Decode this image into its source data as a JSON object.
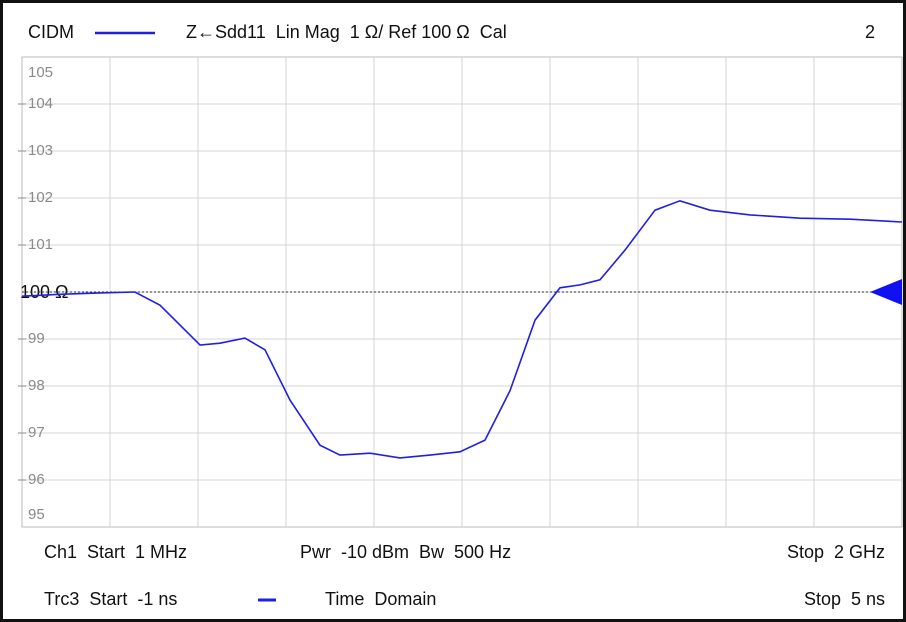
{
  "chart_data": {
    "type": "line",
    "header": {
      "trace": "CIDM",
      "setup": "Z←Sdd11  Lin Mag  1 Ω/ Ref 100 Ω  Cal",
      "window": "2"
    },
    "footer": {
      "ch_start": "Ch1  Start  1 MHz",
      "power": "Pwr  -10 dBm  Bw  500 Hz",
      "ch_stop": "Stop  2 GHz",
      "trc_start": "Trc3  Start  -1 ns",
      "domain": "Time  Domain",
      "trc_stop": "Stop  5 ns"
    },
    "x": [
      -1,
      -0.741,
      -0.468,
      -0.23,
      -0.059,
      0.214,
      0.35,
      0.52,
      0.657,
      0.827,
      1.032,
      1.168,
      1.373,
      1.577,
      1.782,
      1.986,
      2.157,
      2.327,
      2.498,
      2.668,
      2.805,
      2.941,
      3.111,
      3.316,
      3.486,
      3.691,
      3.964,
      4.305,
      4.645,
      5
    ],
    "series": [
      {
        "name": "CIDM",
        "color": "#2020e0",
        "values": [
          99.91,
          99.95,
          99.98,
          100,
          99.72,
          98.87,
          98.91,
          99.02,
          98.77,
          97.7,
          96.74,
          96.53,
          96.57,
          96.47,
          96.53,
          96.6,
          96.85,
          97.9,
          99.4,
          100.09,
          100.15,
          100.26,
          100.89,
          101.74,
          101.94,
          101.74,
          101.64,
          101.57,
          101.55,
          101.49
        ]
      }
    ],
    "reference": 100,
    "xlim": [
      -1,
      5
    ],
    "xticks": [
      -1,
      -0.4,
      0.2,
      0.8,
      1.4,
      2,
      2.6,
      3.2,
      3.8,
      4.4,
      5
    ],
    "ylim": [
      95,
      105
    ],
    "yticks": [
      95,
      96,
      97,
      98,
      99,
      {
        "value": 100,
        "label": "100 Ω"
      },
      101,
      102,
      103,
      104,
      105
    ],
    "grid": true
  }
}
